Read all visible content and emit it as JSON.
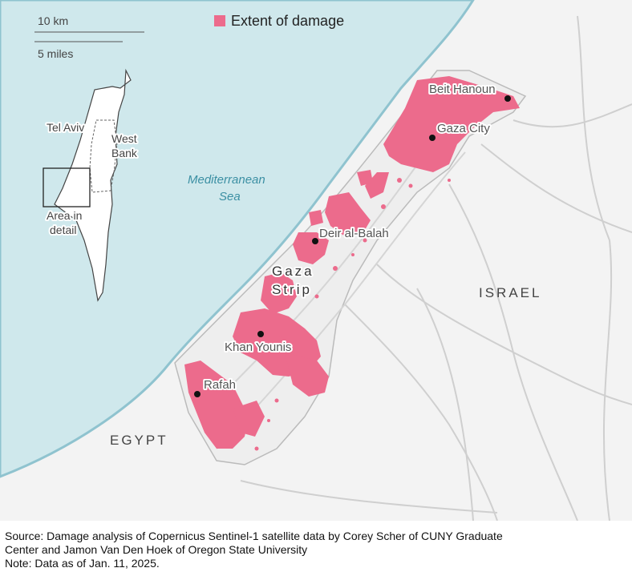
{
  "legend": {
    "label": "Extent of damage",
    "color": "#ec6b8c"
  },
  "scale": {
    "km": "10 km",
    "miles": "5 miles"
  },
  "inset": {
    "labels": [
      "Tel Aviv",
      "West",
      "Bank",
      "Area in",
      "detail"
    ]
  },
  "sea_label": [
    "Mediterranean",
    "Sea"
  ],
  "region_label": [
    "Gaza",
    "Strip"
  ],
  "countries": {
    "israel": "ISRAEL",
    "egypt": "EGYPT"
  },
  "cities": [
    "Beit Hanoun",
    "Gaza City",
    "Deir al-Balah",
    "Khan Younis",
    "Rafah"
  ],
  "colors": {
    "sea": "#cfe8ec",
    "land": "#f3f3f3",
    "damage": "#ec6b8c",
    "coast": "#8fc3cf"
  },
  "footer": {
    "source_line1": "Source: Damage analysis of Copernicus Sentinel-1 satellite data by Corey Scher of CUNY Graduate",
    "source_line2": "Center and Jamon Van Den Hoek of Oregon State University",
    "note": "Note: Data as of Jan. 11, 2025."
  }
}
